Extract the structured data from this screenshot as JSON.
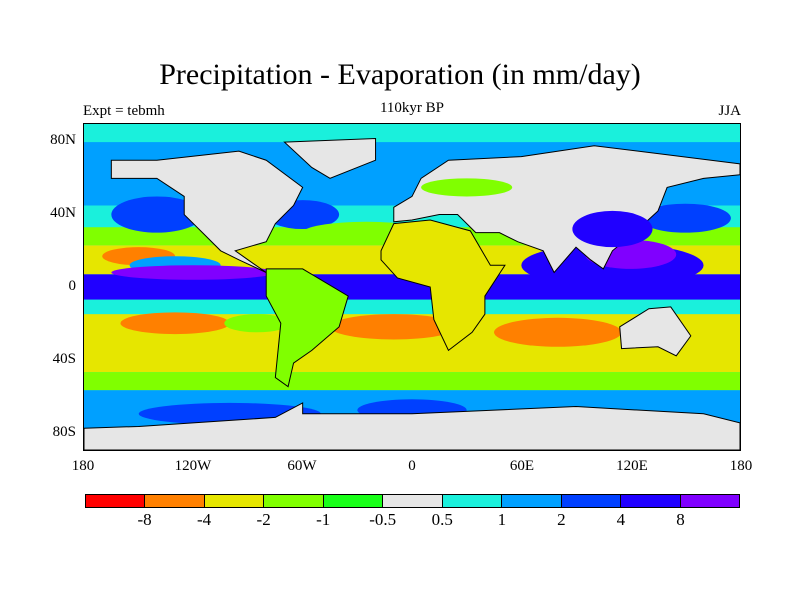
{
  "title": "Precipitation - Evaporation (in mm/day)",
  "subtitle": "110kyr BP",
  "left_label": "Expt = tebmh",
  "right_label": "JJA",
  "y_ticks": [
    "80N",
    "40N",
    "0",
    "40S",
    "80S"
  ],
  "x_ticks": [
    "180",
    "120W",
    "60W",
    "0",
    "60E",
    "120E",
    "180"
  ],
  "colorbar": {
    "colors": [
      "#ff0000",
      "#ff8000",
      "#e6e600",
      "#80ff00",
      "#19ff19",
      "#e6e6e6",
      "#1af0dc",
      "#00a0ff",
      "#0040ff",
      "#2000ff",
      "#8000ff"
    ],
    "labels": [
      "-8",
      "-4",
      "-2",
      "-1",
      "-0.5",
      "0.5",
      "1",
      "2",
      "4",
      "8"
    ]
  }
}
